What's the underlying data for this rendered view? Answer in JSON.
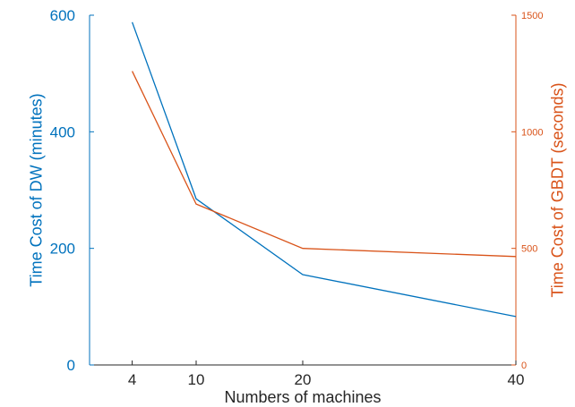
{
  "chart_data": {
    "type": "line",
    "title": "",
    "xlabel": "Numbers of machines",
    "ylabel": "Time Cost of DW (minutes)",
    "y2label": "Time Cost of GBDT (seconds)",
    "x": [
      4,
      10,
      20,
      40
    ],
    "x_ticks": [
      "4",
      "10",
      "20",
      "40"
    ],
    "x_range": [
      0,
      40
    ],
    "ylim": [
      0,
      600
    ],
    "y_ticks": [
      "0",
      "200",
      "400",
      "600"
    ],
    "y2lim": [
      0,
      1500
    ],
    "y2_ticks": [
      "0",
      "500",
      "1000",
      "1500"
    ],
    "grid": false,
    "legend": "none",
    "series": [
      {
        "axis": "left",
        "color": "#0072BD",
        "values": [
          588,
          285,
          155,
          83
        ]
      },
      {
        "axis": "right",
        "color": "#D95319",
        "values": [
          1260,
          690,
          500,
          465
        ]
      }
    ],
    "colors": {
      "left_axis": "#0072BD",
      "right_axis": "#D95319",
      "bottom_axis": "#262626"
    }
  }
}
